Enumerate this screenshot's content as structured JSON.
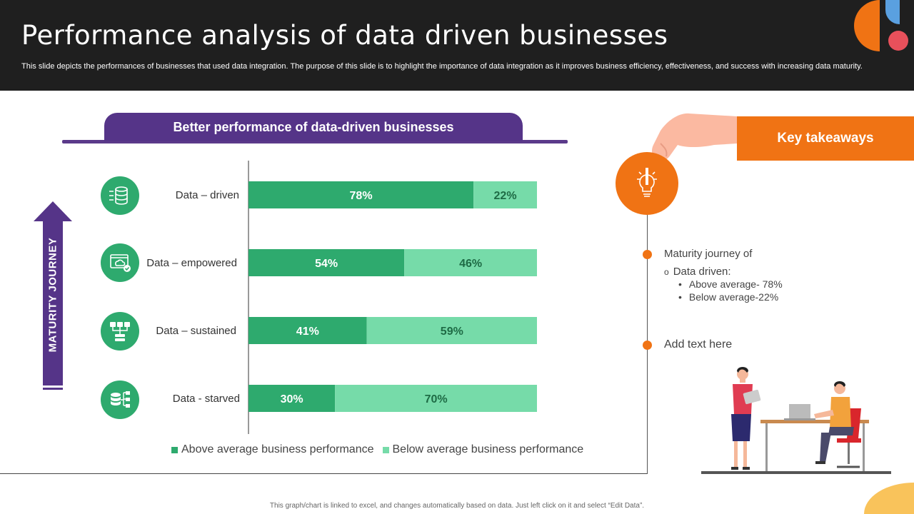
{
  "header": {
    "title": "Performance analysis of data driven businesses",
    "subtitle": "This slide depicts the performances of businesses that used data integration. The purpose of this slide is to highlight the importance of data integration as it improves business efficiency, effectiveness, and success with increasing data maturity."
  },
  "banner": {
    "label": "Better performance of data-driven businesses"
  },
  "maturity": {
    "label": "MATURITY JOURNEY"
  },
  "chart_data": {
    "type": "bar",
    "orientation": "horizontal",
    "stacked": true,
    "categories": [
      "Data – driven",
      "Data – empowered",
      "Data – sustained",
      "Data - starved"
    ],
    "series": [
      {
        "name": "Above average business performance",
        "values": [
          78,
          54,
          41,
          30
        ],
        "color": "#2eaa6e",
        "labels": [
          "78%",
          "54%",
          "41%",
          "30%"
        ]
      },
      {
        "name": "Below average business performance",
        "values": [
          22,
          46,
          59,
          70
        ],
        "color": "#76dba9",
        "labels": [
          "22%",
          "46%",
          "59%",
          "70%"
        ]
      }
    ],
    "xlim": [
      0,
      100
    ],
    "legend": "bottom",
    "grid": false
  },
  "categories_icons": [
    "database-server-icon",
    "cloud-monitor-icon",
    "network-servers-icon",
    "database-flow-icon"
  ],
  "takeaways": {
    "title": "Key takeaways",
    "item1_heading": "Maturity journey  of",
    "item1_sub": "Data driven:",
    "item1_bullets": [
      "Above average- 78%",
      "Below average-22%"
    ],
    "item2": "Add text here"
  },
  "footer": {
    "note": "This graph/chart is linked to excel, and changes automatically based on data. Just left click on it and select “Edit Data”."
  },
  "colors": {
    "accent": "#f07314",
    "purple": "#553488",
    "dark_green": "#2eaa6e",
    "light_green": "#76dba9",
    "header_bg": "#1f1f1f"
  }
}
